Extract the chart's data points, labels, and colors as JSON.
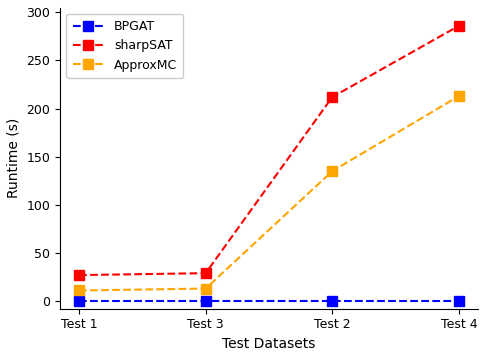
{
  "x_labels": [
    "Test 1",
    "Test 3",
    "Test 2",
    "Test 4"
  ],
  "x_positions": [
    0,
    1,
    2,
    3
  ],
  "series": [
    {
      "label": "BPGAT",
      "color": "#0000ff",
      "marker": "s",
      "values": [
        0,
        0,
        0,
        0
      ]
    },
    {
      "label": "sharpSAT",
      "color": "#ff0000",
      "marker": "s",
      "values": [
        27,
        29,
        212,
        286
      ]
    },
    {
      "label": "ApproxMC",
      "color": "#ffa500",
      "marker": "s",
      "values": [
        11,
        13,
        135,
        213
      ]
    }
  ],
  "xlabel": "Test Datasets",
  "ylabel": "Runtime (s)",
  "ylim": [
    -8,
    305
  ],
  "yticks": [
    0,
    50,
    100,
    150,
    200,
    250,
    300
  ],
  "title": "",
  "legend_loc": "upper left",
  "background_color": "#ffffff",
  "linewidth": 1.5,
  "markersize": 7,
  "figwidth": 4.86,
  "figheight": 3.58,
  "dpi": 100
}
